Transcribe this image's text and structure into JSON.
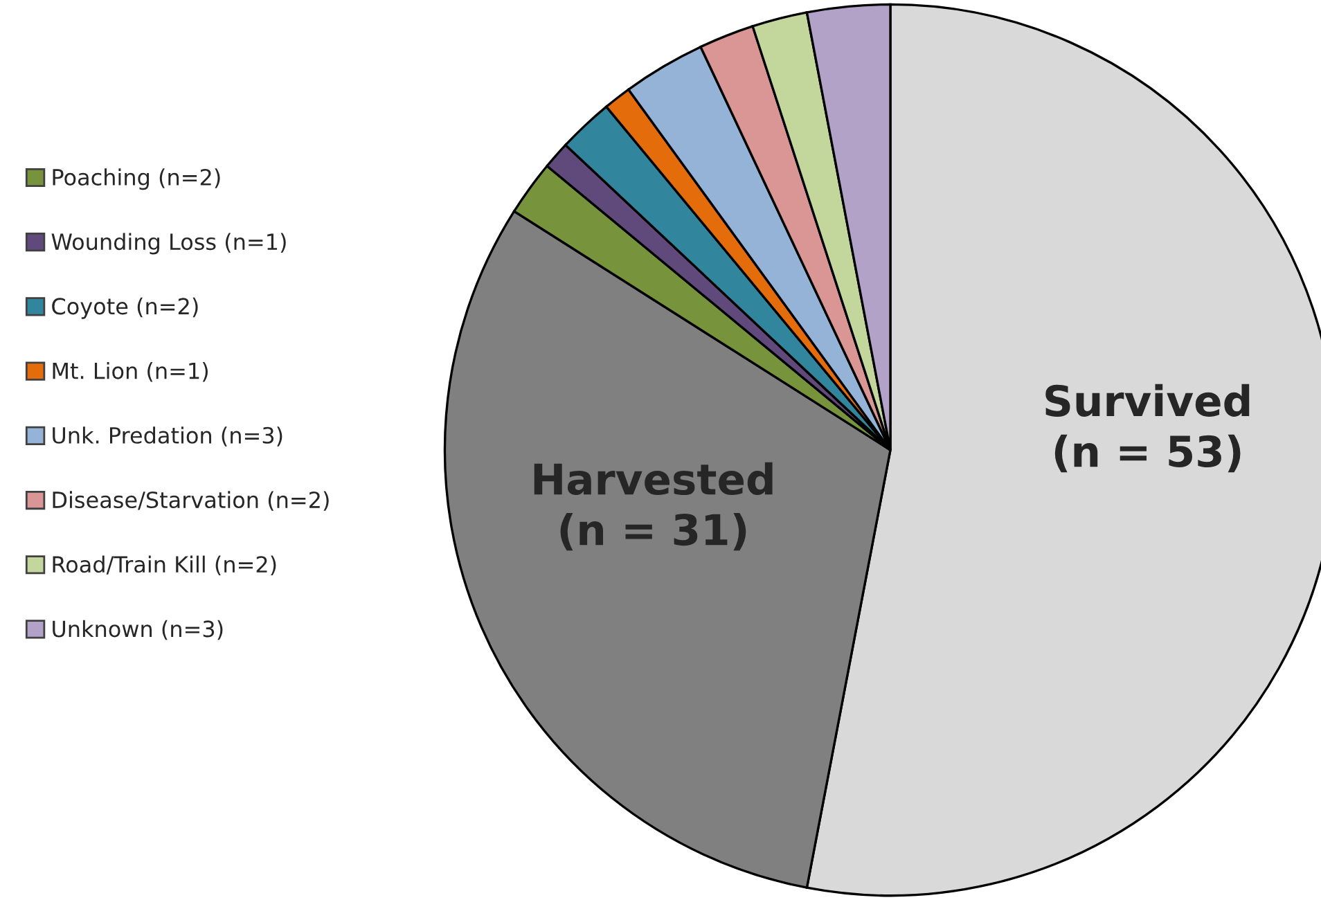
{
  "chart_data": {
    "type": "pie",
    "categories": [
      "Survived\n(n = 53)",
      "Harvested\n(n = 31)",
      "Poaching (n=2)",
      "Wounding Loss (n=1)",
      "Coyote (n=2)",
      "Mt. Lion (n=1)",
      "Unk. Predation (n=3)",
      "Disease/Starvation (n=2)",
      "Road/Train Kill (n=2)",
      "Unknown (n=3)"
    ],
    "values": [
      53,
      31,
      2,
      1,
      2,
      1,
      3,
      2,
      2,
      3
    ],
    "colors": [
      "#d9d9d9",
      "#808080",
      "#77933c",
      "#604a7b",
      "#31859c",
      "#e46c0a",
      "#95b3d7",
      "#d99694",
      "#c3d69b",
      "#b3a2c7"
    ],
    "legend": "left"
  }
}
